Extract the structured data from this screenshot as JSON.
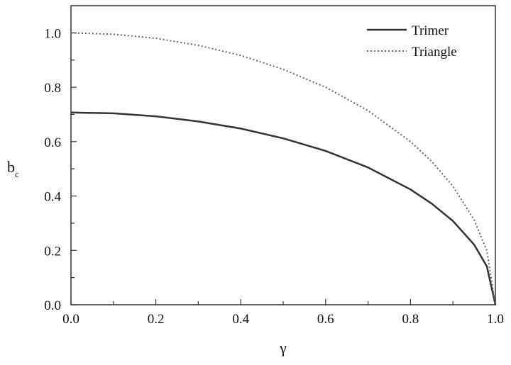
{
  "chart_data": {
    "type": "line",
    "xlabel": "γ",
    "ylabel": "b",
    "ylabel_subscript": "c",
    "xlim": [
      0.0,
      1.0
    ],
    "ylim": [
      0.0,
      1.1
    ],
    "x_ticks": [
      "0.0",
      "0.2",
      "0.4",
      "0.6",
      "0.8",
      "1.0"
    ],
    "y_ticks": [
      "0.0",
      "0.2",
      "0.4",
      "0.6",
      "0.8",
      "1.0"
    ],
    "x_tick_values": [
      0.0,
      0.2,
      0.4,
      0.6,
      0.8,
      1.0
    ],
    "y_tick_values": [
      0.0,
      0.2,
      0.4,
      0.6,
      0.8,
      1.0
    ],
    "grid": false,
    "legend_position": "top-right",
    "series": [
      {
        "name": "Trimer",
        "style": "solid",
        "color": "#333333",
        "x": [
          0.0,
          0.1,
          0.2,
          0.3,
          0.4,
          0.5,
          0.6,
          0.7,
          0.8,
          0.85,
          0.9,
          0.95,
          0.98,
          1.0
        ],
        "y": [
          0.707,
          0.704,
          0.693,
          0.674,
          0.648,
          0.612,
          0.566,
          0.505,
          0.424,
          0.372,
          0.308,
          0.221,
          0.141,
          0.0
        ]
      },
      {
        "name": "Triangle",
        "style": "dotted",
        "color": "#666666",
        "x": [
          0.0,
          0.1,
          0.2,
          0.3,
          0.4,
          0.5,
          0.6,
          0.7,
          0.8,
          0.85,
          0.9,
          0.95,
          0.98,
          1.0
        ],
        "y": [
          1.0,
          0.995,
          0.98,
          0.954,
          0.917,
          0.866,
          0.8,
          0.714,
          0.6,
          0.527,
          0.436,
          0.312,
          0.199,
          0.0
        ]
      }
    ]
  }
}
